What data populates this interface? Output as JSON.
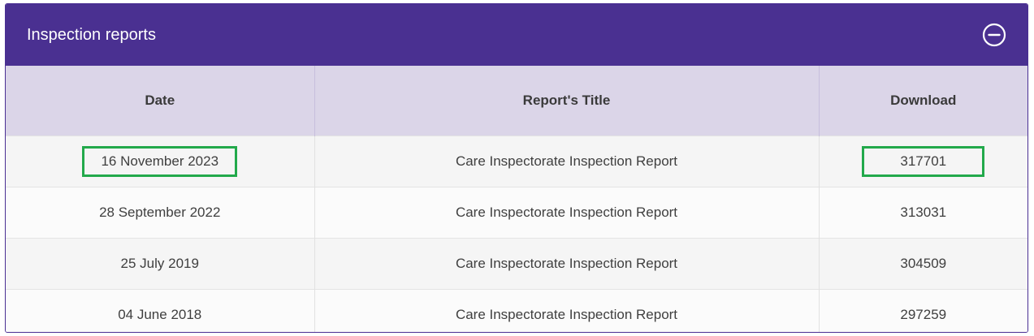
{
  "panel": {
    "title": "Inspection reports",
    "collapse_icon": "minus-circle-icon"
  },
  "table": {
    "headers": {
      "date": "Date",
      "title": "Report's Title",
      "download": "Download"
    },
    "rows": [
      {
        "date": "16 November 2023",
        "title": "Care Inspectorate Inspection Report",
        "download": "317701"
      },
      {
        "date": "28 September 2022",
        "title": "Care Inspectorate Inspection Report",
        "download": "313031"
      },
      {
        "date": "25 July 2019",
        "title": "Care Inspectorate Inspection Report",
        "download": "304509"
      },
      {
        "date": "04 June 2018",
        "title": "Care Inspectorate Inspection Report",
        "download": "297259"
      }
    ]
  },
  "colors": {
    "header_bg": "#4a3091",
    "table_header_bg": "#dbd5e8",
    "highlight": "#22a94b"
  }
}
